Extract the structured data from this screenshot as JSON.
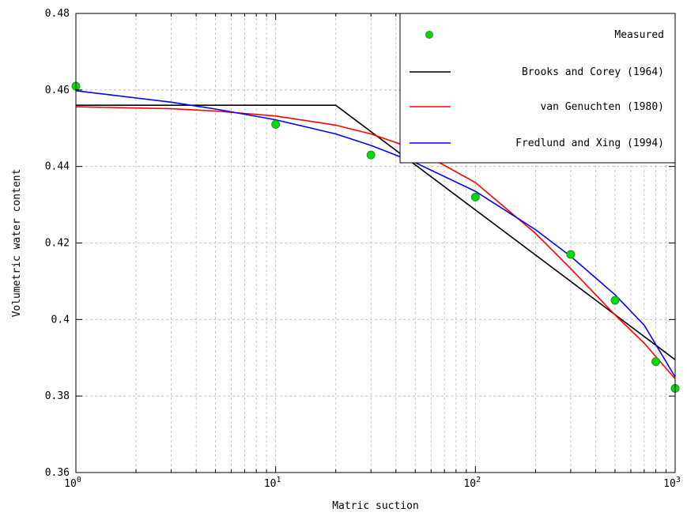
{
  "chart_data": {
    "type": "line",
    "xlabel": "Matric suction",
    "ylabel": "Volumetric water content",
    "x_scale": "log",
    "xlim": [
      1,
      1000
    ],
    "ylim": [
      0.36,
      0.48
    ],
    "grid": true,
    "legend_position": "top-right",
    "x_ticks": [
      {
        "base": "10",
        "exp": "0"
      },
      {
        "base": "10",
        "exp": "1"
      },
      {
        "base": "10",
        "exp": "2"
      },
      {
        "base": "10",
        "exp": "3"
      }
    ],
    "y_ticks": [
      "0.36",
      "0.38",
      "0.4",
      "0.42",
      "0.44",
      "0.46",
      "0.48"
    ],
    "series": [
      {
        "name": "Measured",
        "type": "scatter",
        "color": "#00dd00",
        "edge_color": "#2f8a2f",
        "x": [
          1,
          10,
          30,
          100,
          300,
          500,
          800,
          1000
        ],
        "y": [
          0.461,
          0.451,
          0.443,
          0.432,
          0.417,
          0.405,
          0.389,
          0.382
        ]
      },
      {
        "name": "Brooks and Corey (1964)",
        "type": "line",
        "color": "#000000",
        "x": [
          1,
          20,
          1000
        ],
        "y": [
          0.456,
          0.456,
          0.3895
        ]
      },
      {
        "name": "van Genuchten (1980)",
        "type": "line",
        "color": "#ff0000",
        "x": [
          1,
          3,
          5,
          10,
          20,
          30,
          50,
          100,
          200,
          300,
          500,
          700,
          1000
        ],
        "y": [
          0.4556,
          0.4551,
          0.4545,
          0.4532,
          0.4508,
          0.4485,
          0.4445,
          0.4358,
          0.4225,
          0.4133,
          0.4012,
          0.3938,
          0.3845
        ]
      },
      {
        "name": "Fredlund and Xing (1994)",
        "type": "line",
        "color": "#0000ff",
        "x": [
          1,
          3,
          5,
          10,
          20,
          30,
          50,
          100,
          200,
          300,
          500,
          700,
          1000
        ],
        "y": [
          0.4598,
          0.4568,
          0.455,
          0.4522,
          0.4485,
          0.4455,
          0.441,
          0.4335,
          0.4235,
          0.4165,
          0.4065,
          0.3985,
          0.385
        ]
      }
    ]
  }
}
